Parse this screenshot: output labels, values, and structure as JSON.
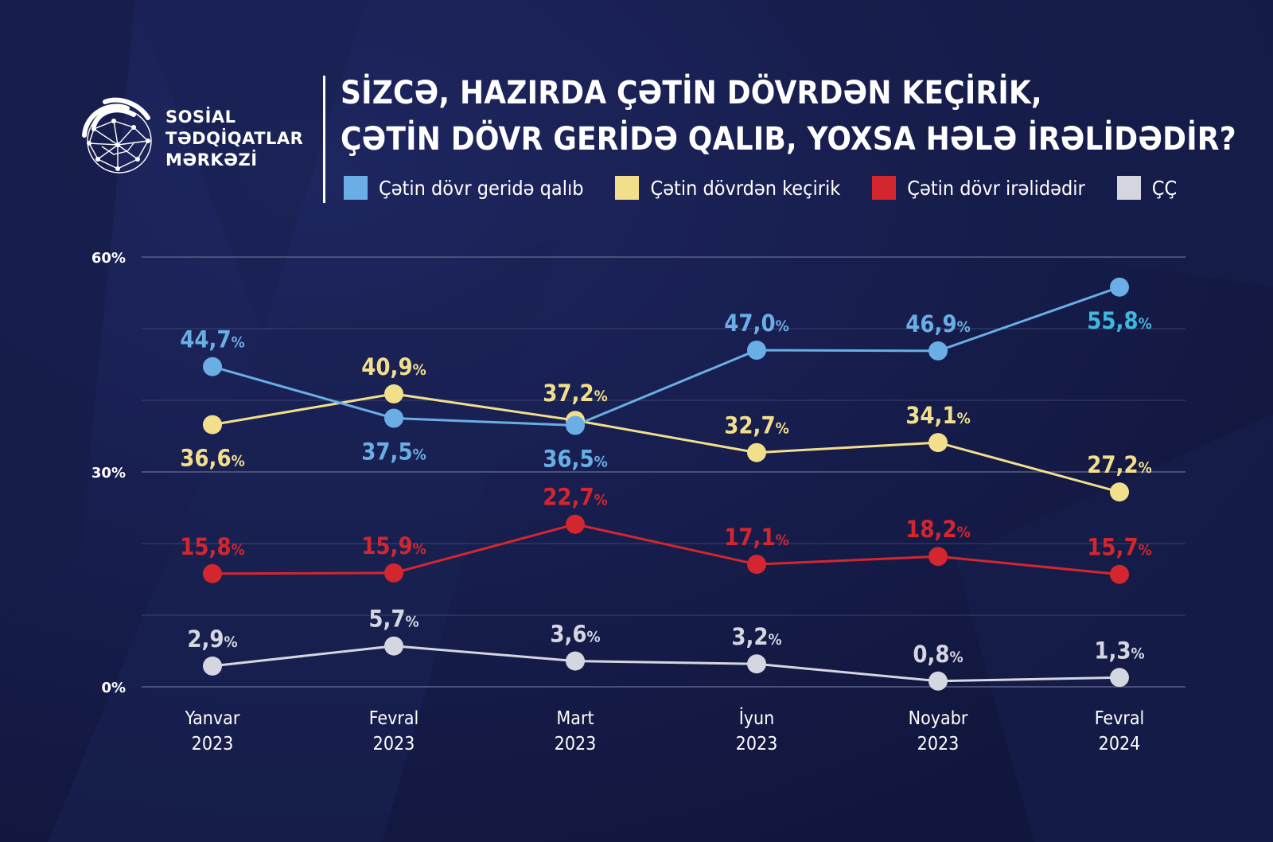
{
  "brand": {
    "line1": "SOSİAL",
    "line2": "TƏDQİQATLAR",
    "line3": "MƏRKƏZİ",
    "logo_icon": "globe-swirl-icon"
  },
  "title": {
    "line1": "SİZCƏ, HAZIRDA ÇƏTİN DÖVRDƏN KEÇİRİK,",
    "line2": "ÇƏTİN DÖVR GERİDƏ QALIB, YOXSA HƏLƏ İRƏLİDƏDİR?"
  },
  "colors": {
    "background": "#141a45",
    "blue": "#6aaee6",
    "yellow": "#f2df8c",
    "red": "#d3262f",
    "gray": "#d4d6e0",
    "last_blue_label": "#3fb8df",
    "gridline": "#5a6188"
  },
  "chart_data": {
    "type": "line",
    "categories": [
      [
        "Yanvar",
        "2023"
      ],
      [
        "Fevral",
        "2023"
      ],
      [
        "Mart",
        "2023"
      ],
      [
        "İyun",
        "2023"
      ],
      [
        "Noyabr",
        "2023"
      ],
      [
        "Fevral",
        "2024"
      ]
    ],
    "ylim": [
      0,
      60
    ],
    "yticks": [
      {
        "value": 60,
        "label": "60%"
      },
      {
        "value": 30,
        "label": "30%"
      },
      {
        "value": 0,
        "label": "0%"
      }
    ],
    "gridlines": [
      0,
      10,
      20,
      30,
      40,
      50,
      60
    ],
    "legend_position": "top",
    "series": [
      {
        "name": "Çətin dövr geridə qalıb",
        "color": "#6aaee6",
        "values": [
          44.7,
          37.5,
          36.5,
          47.0,
          46.9,
          55.8
        ],
        "labels": [
          "44,7",
          "37,5",
          "36,5",
          "47,0",
          "46,9",
          "55,8"
        ],
        "label_pos": [
          "above",
          "below",
          "below",
          "above",
          "above",
          "below"
        ]
      },
      {
        "name": "Çətin dövrdən keçirik",
        "color": "#f2df8c",
        "values": [
          36.6,
          40.9,
          37.2,
          32.7,
          34.1,
          27.2
        ],
        "labels": [
          "36,6",
          "40,9",
          "37,2",
          "32,7",
          "34,1",
          "27,2"
        ],
        "label_pos": [
          "below",
          "above",
          "above",
          "above",
          "above",
          "above"
        ]
      },
      {
        "name": "Çətin dövr irəlidədir",
        "color": "#d3262f",
        "values": [
          15.8,
          15.9,
          22.7,
          17.1,
          18.2,
          15.7
        ],
        "labels": [
          "15,8",
          "15,9",
          "22,7",
          "17,1",
          "18,2",
          "15,7"
        ],
        "label_pos": [
          "above",
          "above",
          "above",
          "above",
          "above",
          "above"
        ]
      },
      {
        "name": "ÇÇ",
        "color": "#d4d6e0",
        "values": [
          2.9,
          5.7,
          3.6,
          3.2,
          0.8,
          1.3
        ],
        "labels": [
          "2,9",
          "5,7",
          "3,6",
          "3,2",
          "0,8",
          "1,3"
        ],
        "label_pos": [
          "above",
          "above",
          "above",
          "above",
          "above",
          "above"
        ]
      }
    ],
    "percent_sign": "%"
  }
}
